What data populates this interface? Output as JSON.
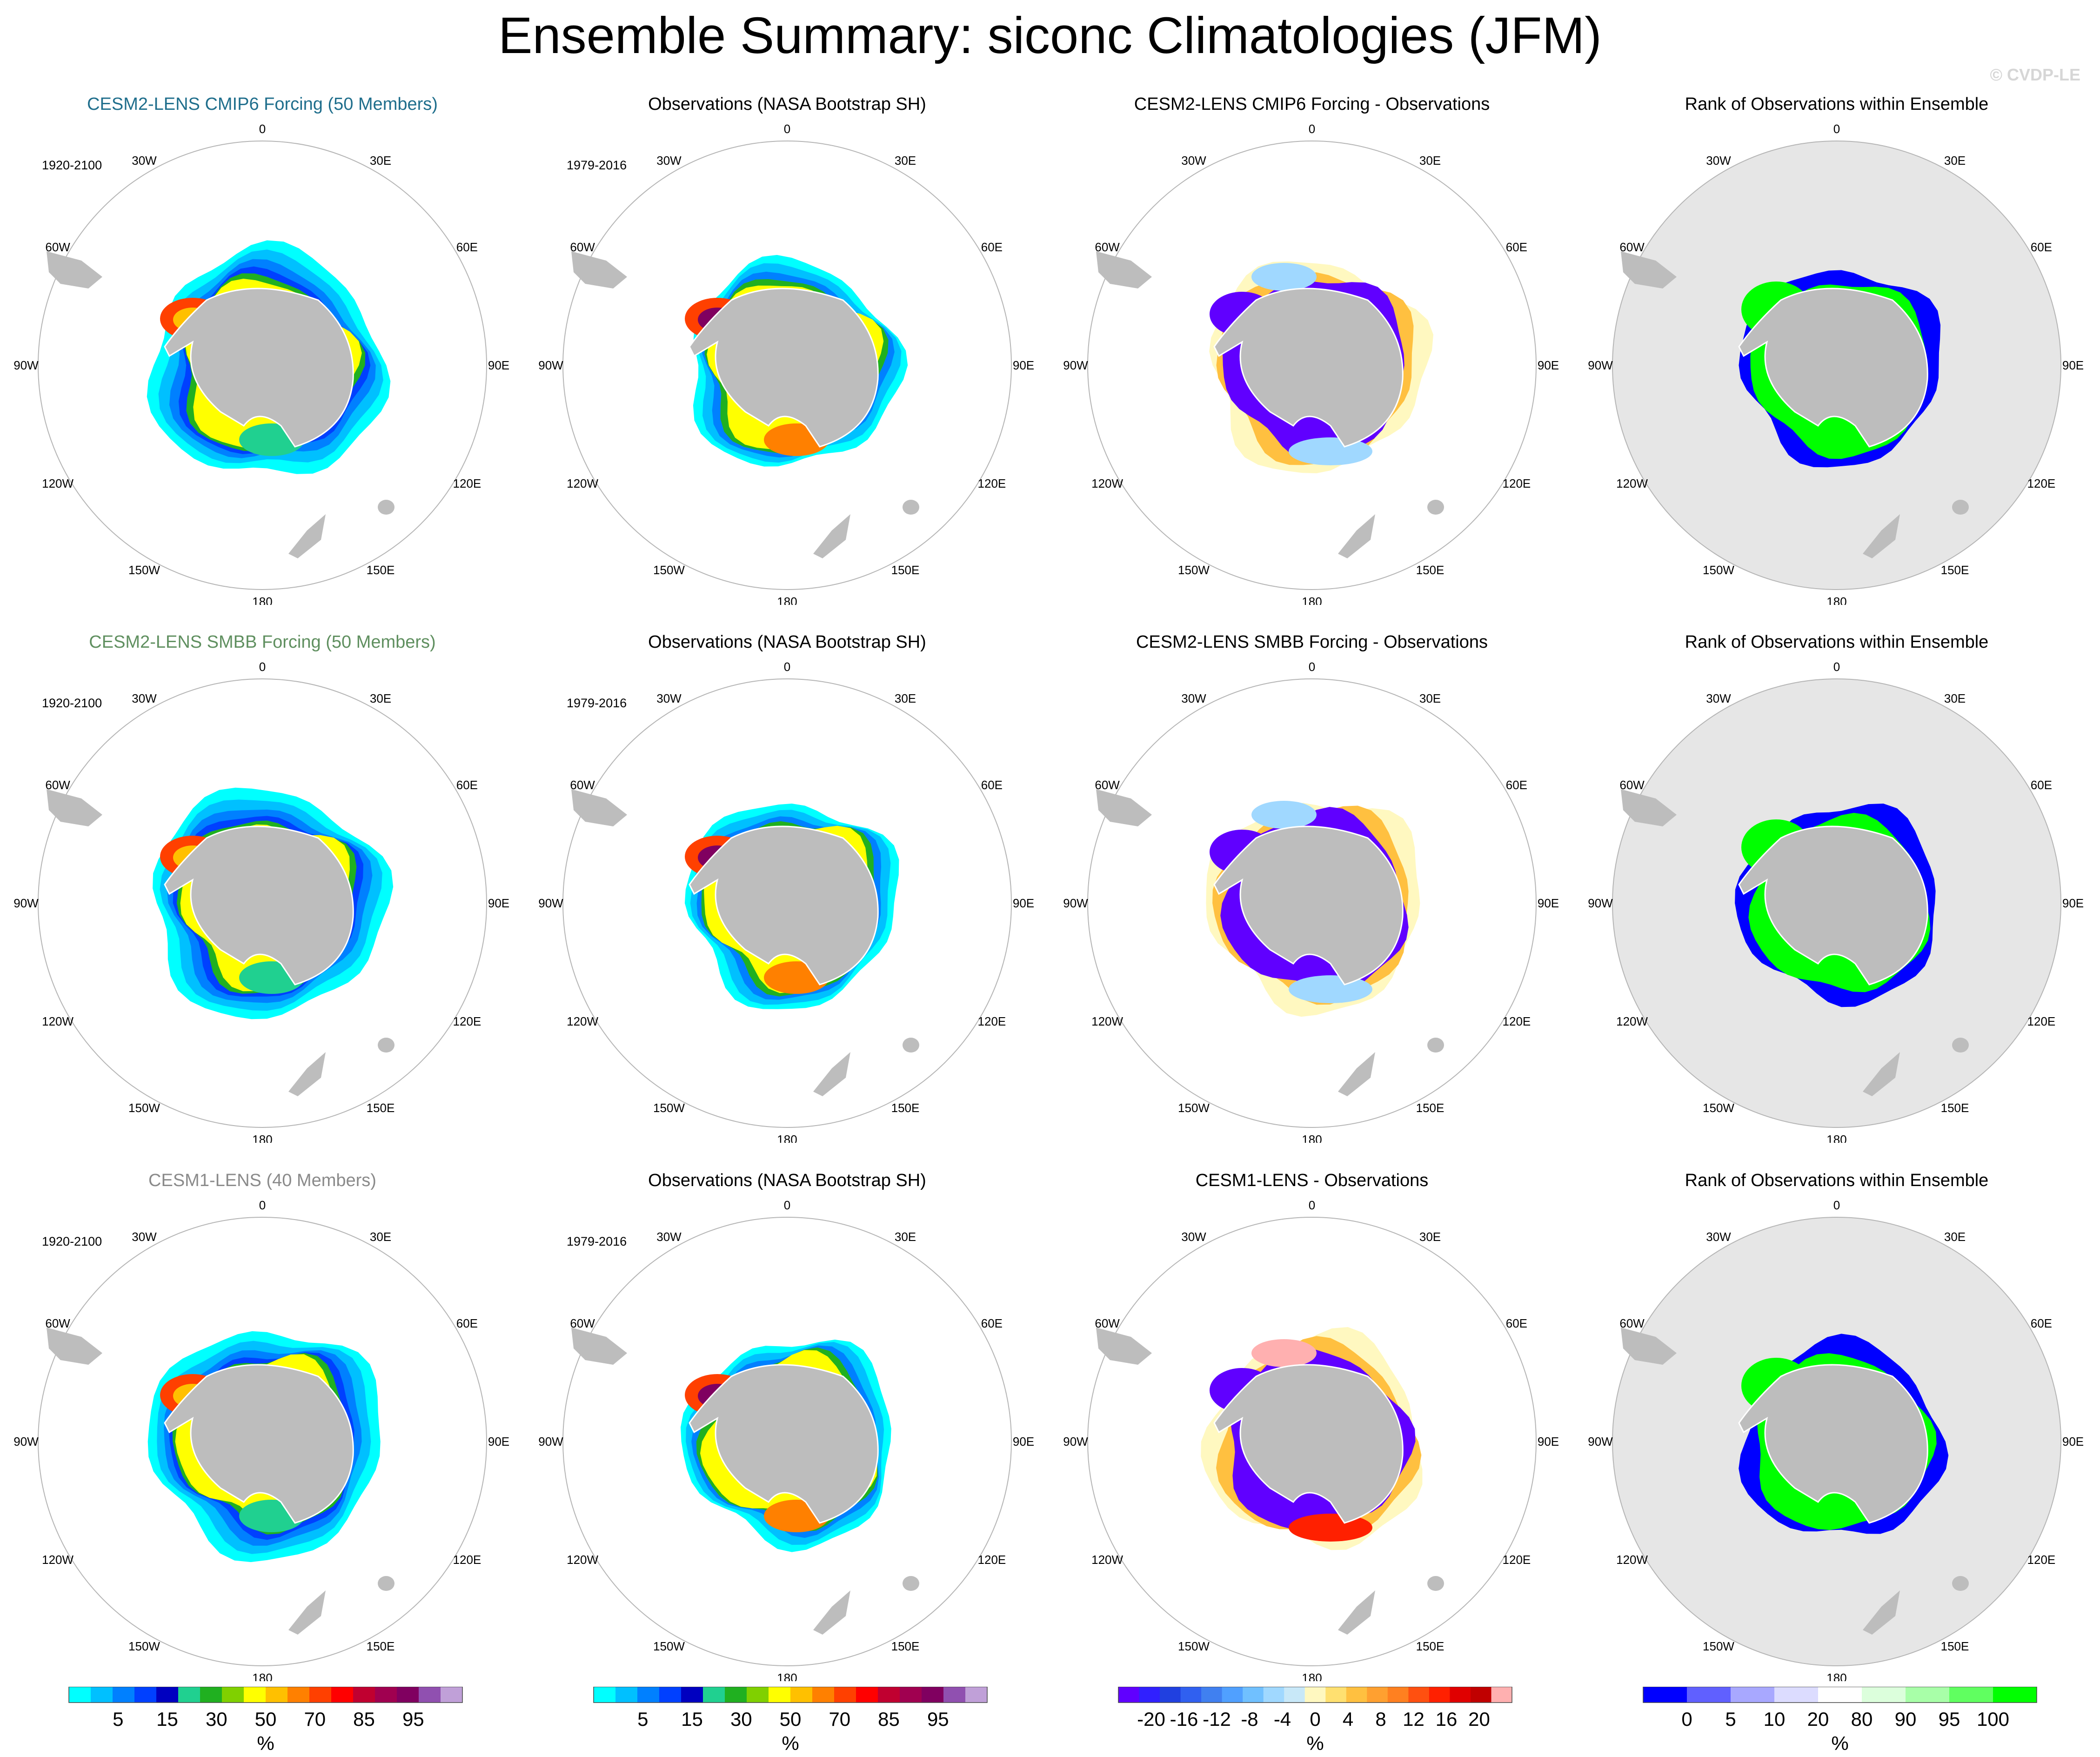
{
  "title": "Ensemble Summary: siconc Climatologies (JFM)",
  "watermark": "© CVDP-LE",
  "colors": {
    "land": "#bdbdbd",
    "ocean_rank_bg": "#e6e6e6",
    "title_row1": "#1f6e8c",
    "title_row2": "#5f8f5f",
    "title_row3": "#8a8a8a",
    "rank_low": "#0000ff",
    "rank_high": "#00ff00"
  },
  "longitude_labels": [
    "0",
    "30E",
    "60E",
    "90E",
    "120E",
    "150E",
    "180",
    "150W",
    "120W",
    "90W",
    "60W",
    "30W"
  ],
  "rows": [
    {
      "panels": [
        {
          "title": "CESM2-LENS CMIP6 Forcing (50 Members)",
          "period": "1920-2100",
          "kind": "model",
          "title_color": "#1f6e8c"
        },
        {
          "title": "Observations (NASA Bootstrap SH)",
          "period": "1979-2016",
          "kind": "obs",
          "title_color": "#000000"
        },
        {
          "title": "CESM2-LENS CMIP6 Forcing - Observations",
          "period": "",
          "kind": "diff",
          "title_color": "#000000"
        },
        {
          "title": "Rank of Observations within Ensemble",
          "period": "",
          "kind": "rank",
          "title_color": "#000000"
        }
      ]
    },
    {
      "panels": [
        {
          "title": "CESM2-LENS SMBB Forcing (50 Members)",
          "period": "1920-2100",
          "kind": "model",
          "title_color": "#5f8f5f"
        },
        {
          "title": "Observations (NASA Bootstrap SH)",
          "period": "1979-2016",
          "kind": "obs",
          "title_color": "#000000"
        },
        {
          "title": "CESM2-LENS SMBB Forcing - Observations",
          "period": "",
          "kind": "diff",
          "title_color": "#000000"
        },
        {
          "title": "Rank of Observations within Ensemble",
          "period": "",
          "kind": "rank",
          "title_color": "#000000"
        }
      ]
    },
    {
      "panels": [
        {
          "title": "CESM1-LENS (40 Members)",
          "period": "1920-2100",
          "kind": "model",
          "title_color": "#8a8a8a"
        },
        {
          "title": "Observations (NASA Bootstrap SH)",
          "period": "1979-2016",
          "kind": "obs",
          "title_color": "#000000"
        },
        {
          "title": "CESM1-LENS - Observations",
          "period": "",
          "kind": "diff",
          "title_color": "#000000"
        },
        {
          "title": "Rank of Observations within Ensemble",
          "period": "",
          "kind": "rank",
          "title_color": "#000000"
        }
      ]
    }
  ],
  "colorbars": [
    {
      "unit": "%",
      "ticks": [
        "5",
        "15",
        "30",
        "50",
        "70",
        "85",
        "95"
      ],
      "colors": [
        "#00ffff",
        "#00c0ff",
        "#0080ff",
        "#0040ff",
        "#0000c0",
        "#20d090",
        "#20b020",
        "#80d000",
        "#ffff00",
        "#ffc000",
        "#ff8000",
        "#ff4000",
        "#ff0000",
        "#c00030",
        "#a00050",
        "#800060",
        "#9050b0",
        "#c0a0d8"
      ]
    },
    {
      "unit": "%",
      "ticks": [
        "5",
        "15",
        "30",
        "50",
        "70",
        "85",
        "95"
      ],
      "colors": [
        "#00ffff",
        "#00c0ff",
        "#0080ff",
        "#0040ff",
        "#0000c0",
        "#20d090",
        "#20b020",
        "#80d000",
        "#ffff00",
        "#ffc000",
        "#ff8000",
        "#ff4000",
        "#ff0000",
        "#c00030",
        "#a00050",
        "#800060",
        "#9050b0",
        "#c0a0d8"
      ]
    },
    {
      "unit": "%",
      "ticks": [
        "-20",
        "-16",
        "-12",
        "-8",
        "-4",
        "0",
        "4",
        "8",
        "12",
        "16",
        "20"
      ],
      "colors": [
        "#6000ff",
        "#3020ff",
        "#2040e0",
        "#3060f0",
        "#4080f0",
        "#50a0ff",
        "#70c0ff",
        "#a0d8ff",
        "#c8e8f8",
        "#fff8c0",
        "#ffe070",
        "#ffc040",
        "#ffa030",
        "#ff8020",
        "#ff5010",
        "#ff2000",
        "#e00000",
        "#c00000",
        "#ffb0b0"
      ]
    },
    {
      "unit": "%",
      "ticks": [
        "0",
        "5",
        "10",
        "20",
        "80",
        "90",
        "95",
        "100"
      ],
      "colors": [
        "#0000ff",
        "#6060ff",
        "#a8a8ff",
        "#dcdcff",
        "#ffffff",
        "#dcffdc",
        "#a8ffa8",
        "#60ff60",
        "#00ff00"
      ]
    }
  ]
}
